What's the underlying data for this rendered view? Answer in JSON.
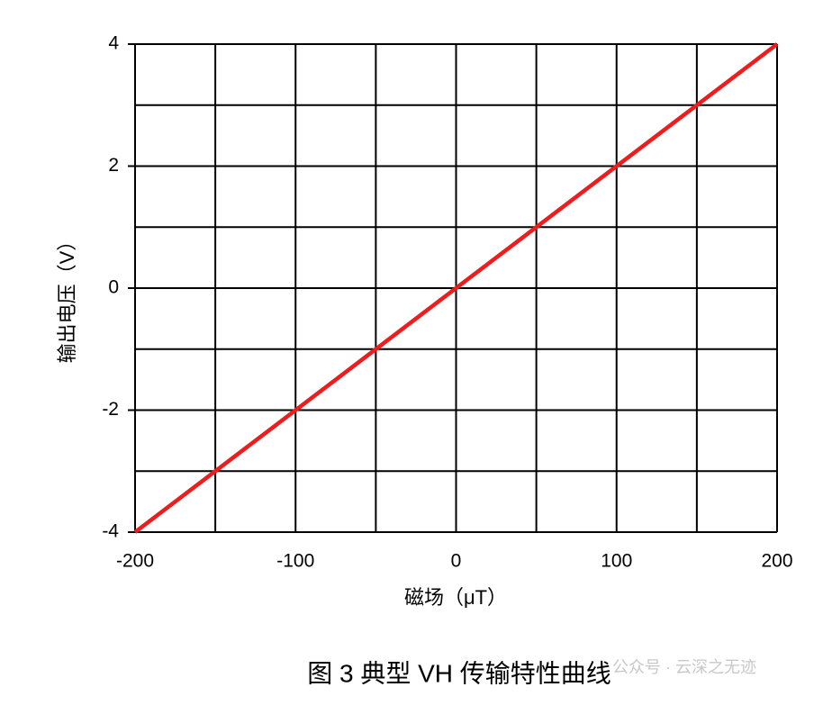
{
  "chart_data": {
    "type": "line",
    "x_label": "磁场（μT）",
    "y_label": "输出电压（V）",
    "caption": "图 3 典型 VH 传输特性曲线",
    "watermark": "公众号 · 云深之无迹",
    "x": [
      -200,
      200
    ],
    "series": [
      {
        "values": [
          -4,
          4
        ],
        "color": "#ee1c1c"
      }
    ],
    "xlim": [
      -200,
      200
    ],
    "ylim": [
      -4,
      4
    ],
    "xticks": [
      -200,
      -100,
      0,
      100,
      200
    ],
    "yticks": [
      -4,
      -2,
      0,
      2,
      4
    ],
    "x_grid": [
      -150,
      -50,
      50,
      150
    ],
    "y_grid": [
      -3,
      -1,
      1,
      3
    ],
    "grid": true
  }
}
